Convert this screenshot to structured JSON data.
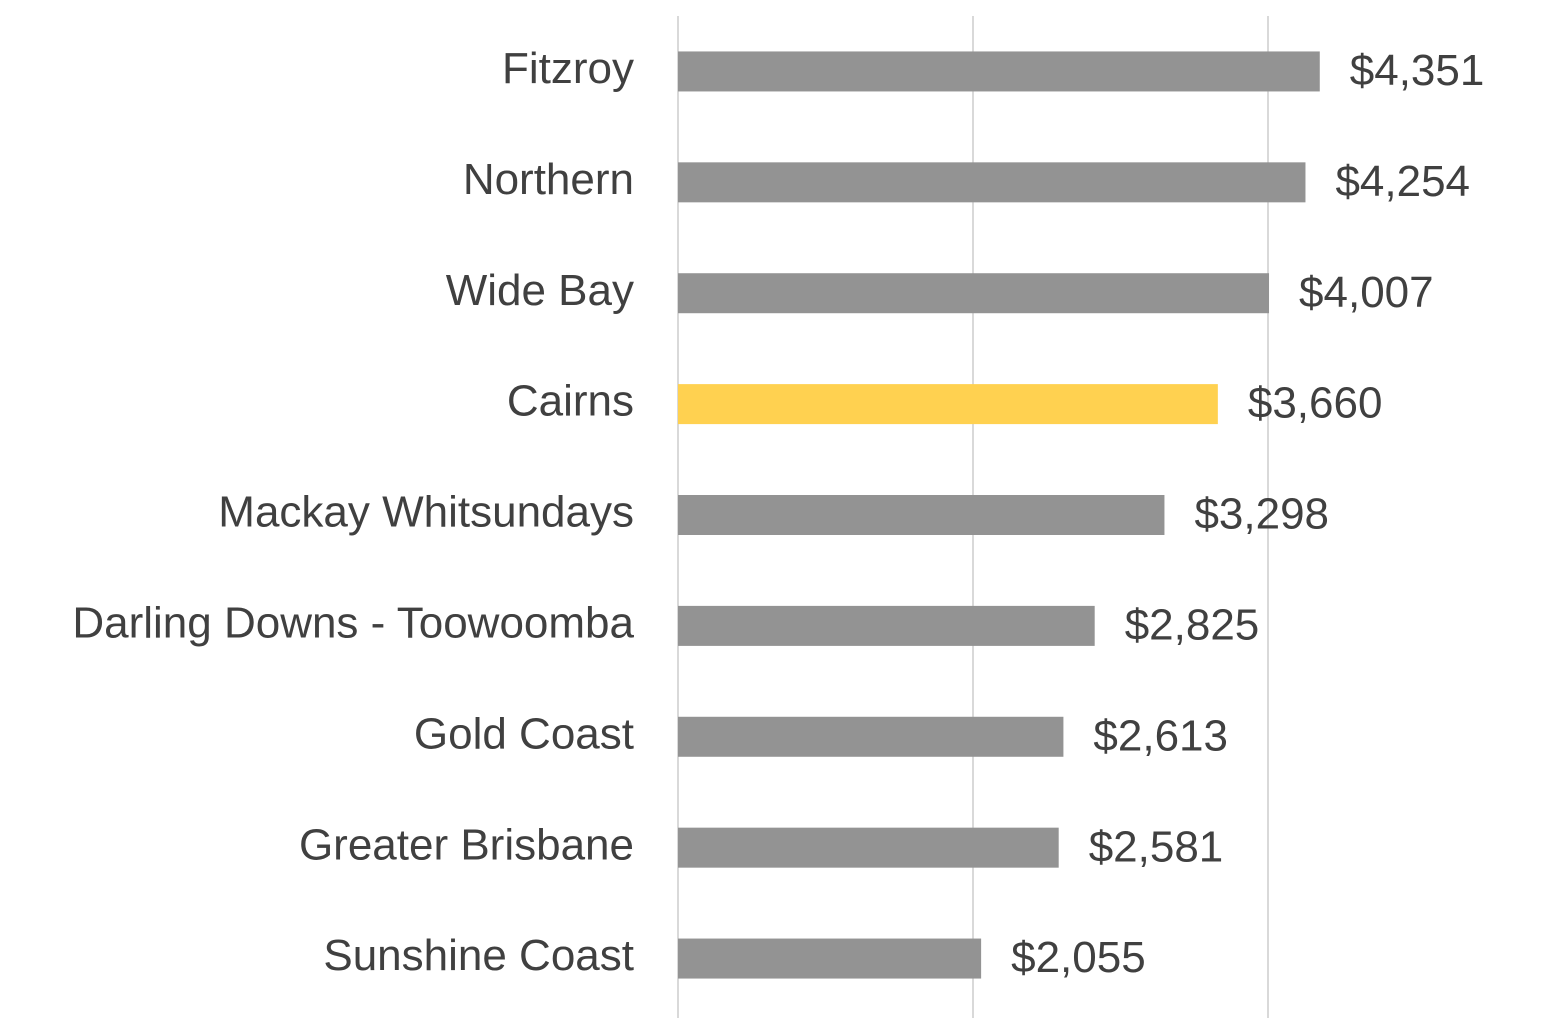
{
  "chart_data": {
    "type": "bar",
    "orientation": "horizontal",
    "categories": [
      "Fitzroy",
      "Northern",
      "Wide Bay",
      "Cairns",
      "Mackay Whitsundays",
      "Darling Downs - Toowoomba",
      "Gold Coast",
      "Greater Brisbane",
      "Sunshine Coast"
    ],
    "values": [
      4351,
      4254,
      4007,
      3660,
      3298,
      2825,
      2613,
      2581,
      2055
    ],
    "value_labels": [
      "$4,351",
      "$4,254",
      "$4,007",
      "$3,660",
      "$3,298",
      "$2,825",
      "$2,613",
      "$2,581",
      "$2,055"
    ],
    "colors": [
      "#939393",
      "#939393",
      "#939393",
      "#ffd150",
      "#939393",
      "#939393",
      "#939393",
      "#939393",
      "#939393"
    ],
    "xlim": [
      0,
      5000
    ],
    "xticks": [
      0,
      2000,
      4000
    ],
    "grid": true
  }
}
